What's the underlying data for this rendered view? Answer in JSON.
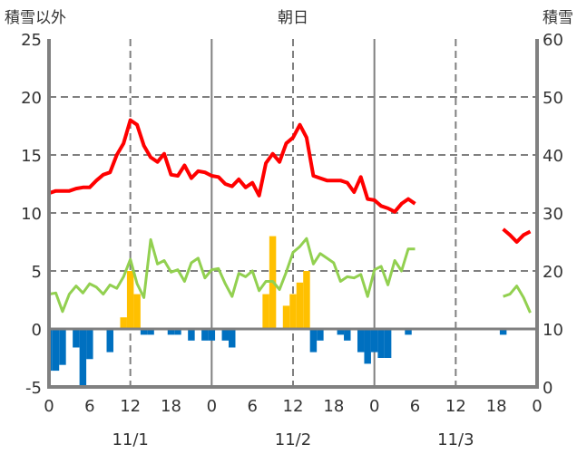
{
  "chart_data": {
    "type": "line+bar",
    "title": "朝日",
    "left_axis_title": "積雪以外",
    "right_axis_title": "積雪",
    "ylim_left": [
      -5,
      25
    ],
    "ylim_right": [
      0,
      60
    ],
    "yticks_left": [
      "-5",
      "0",
      "5",
      "10",
      "15",
      "20",
      "25"
    ],
    "yticks_right": [
      "0",
      "10",
      "20",
      "30",
      "40",
      "50",
      "60"
    ],
    "xlim_hours": [
      0,
      72
    ],
    "xtick_labels": [
      "0",
      "6",
      "12",
      "18",
      "0",
      "6",
      "12",
      "18",
      "0",
      "6",
      "12",
      "18",
      "0"
    ],
    "date_labels": [
      {
        "label": "11/1",
        "hour": 12
      },
      {
        "label": "11/2",
        "hour": 36
      },
      {
        "label": "11/3",
        "hour": 60
      }
    ],
    "colors": {
      "red": "#ff0000",
      "green": "#92d050",
      "orange": "#ffc000",
      "blue": "#0070c0",
      "grid": "#808080"
    },
    "series": [
      {
        "name": "red-line",
        "color": "#ff0000",
        "points": [
          [
            0,
            11.7
          ],
          [
            1,
            11.9
          ],
          [
            2,
            11.9
          ],
          [
            3,
            11.9
          ],
          [
            4,
            12.1
          ],
          [
            5,
            12.2
          ],
          [
            6,
            12.2
          ],
          [
            7,
            12.8
          ],
          [
            8,
            13.3
          ],
          [
            9,
            13.5
          ],
          [
            10,
            15
          ],
          [
            11,
            16
          ],
          [
            12,
            18
          ],
          [
            13,
            17.6
          ],
          [
            14,
            15.8
          ],
          [
            15,
            14.8
          ],
          [
            16,
            14.4
          ],
          [
            17,
            15.1
          ],
          [
            18,
            13.3
          ],
          [
            19,
            13.2
          ],
          [
            20,
            14.1
          ],
          [
            21,
            13
          ],
          [
            22,
            13.6
          ],
          [
            23,
            13.5
          ],
          [
            24,
            13.2
          ],
          [
            25,
            13.1
          ],
          [
            26,
            12.5
          ],
          [
            27,
            12.3
          ],
          [
            28,
            12.9
          ],
          [
            29,
            12.2
          ],
          [
            30,
            12.6
          ],
          [
            31,
            11.5
          ],
          [
            32,
            14.3
          ],
          [
            33,
            15.1
          ],
          [
            34,
            14.4
          ],
          [
            35,
            16
          ],
          [
            36,
            16.5
          ],
          [
            37,
            17.6
          ],
          [
            38,
            16.5
          ],
          [
            39,
            13.2
          ],
          [
            40,
            13
          ],
          [
            41,
            12.8
          ],
          [
            42,
            12.8
          ],
          [
            43,
            12.8
          ],
          [
            44,
            12.6
          ],
          [
            45,
            11.8
          ],
          [
            46,
            13.1
          ],
          [
            47,
            11.2
          ],
          [
            48,
            11.1
          ],
          [
            49,
            10.6
          ],
          [
            50,
            10.4
          ],
          [
            51,
            10.1
          ],
          [
            52,
            10.8
          ],
          [
            53,
            11.2
          ],
          [
            54,
            10.8
          ],
          null,
          [
            67,
            8.6
          ],
          [
            68,
            8.1
          ],
          [
            69,
            7.5
          ],
          [
            70,
            8.1
          ],
          [
            71,
            8.4
          ]
        ]
      },
      {
        "name": "green-line",
        "color": "#92d050",
        "points": [
          [
            0,
            3
          ],
          [
            1,
            3.1
          ],
          [
            2,
            1.5
          ],
          [
            3,
            3
          ],
          [
            4,
            3.7
          ],
          [
            5,
            3.1
          ],
          [
            6,
            3.9
          ],
          [
            7,
            3.6
          ],
          [
            8,
            3
          ],
          [
            9,
            3.8
          ],
          [
            10,
            3.5
          ],
          [
            11,
            4.5
          ],
          [
            12,
            6
          ],
          [
            13,
            3.9
          ],
          [
            14,
            2.7
          ],
          [
            15,
            7.7
          ],
          [
            16,
            5.6
          ],
          [
            17,
            5.9
          ],
          [
            18,
            4.9
          ],
          [
            19,
            5.1
          ],
          [
            20,
            4.1
          ],
          [
            21,
            5.7
          ],
          [
            22,
            6.1
          ],
          [
            23,
            4.4
          ],
          [
            24,
            5.1
          ],
          [
            25,
            5.2
          ],
          [
            26,
            3.9
          ],
          [
            27,
            2.8
          ],
          [
            28,
            4.8
          ],
          [
            29,
            4.5
          ],
          [
            30,
            5
          ],
          [
            31,
            3.3
          ],
          [
            32,
            4.1
          ],
          [
            33,
            4.1
          ],
          [
            34,
            3.4
          ],
          [
            35,
            4.9
          ],
          [
            36,
            6.6
          ],
          [
            37,
            7.1
          ],
          [
            38,
            7.8
          ],
          [
            39,
            5.6
          ],
          [
            40,
            6.5
          ],
          [
            41,
            6.1
          ],
          [
            42,
            5.7
          ],
          [
            43,
            4.1
          ],
          [
            44,
            4.5
          ],
          [
            45,
            4.4
          ],
          [
            46,
            4.7
          ],
          [
            47,
            2.8
          ],
          [
            48,
            5.1
          ],
          [
            49,
            5.4
          ],
          [
            50,
            3.8
          ],
          [
            51,
            5.9
          ],
          [
            52,
            5
          ],
          [
            53,
            6.9
          ],
          [
            54,
            6.9
          ],
          null,
          [
            67,
            2.8
          ],
          [
            68,
            3
          ],
          [
            69,
            3.7
          ],
          [
            70,
            2.7
          ],
          [
            71,
            1.4
          ]
        ]
      },
      {
        "name": "orange-bars",
        "color": "#ffc000",
        "bars": [
          [
            11,
            1
          ],
          [
            12,
            5
          ],
          [
            13,
            3
          ],
          [
            32,
            3
          ],
          [
            33,
            8
          ],
          [
            35,
            2
          ],
          [
            36,
            3
          ],
          [
            37,
            4
          ],
          [
            38,
            5
          ]
        ]
      },
      {
        "name": "blue-bars",
        "color": "#0070c0",
        "bars": [
          [
            0,
            -3.6
          ],
          [
            1,
            -3.6
          ],
          [
            2,
            -3.1
          ],
          [
            4,
            -1.6
          ],
          [
            5,
            -5
          ],
          [
            6,
            -2.6
          ],
          [
            9,
            -2
          ],
          [
            14,
            -0.5
          ],
          [
            15,
            -0.5
          ],
          [
            18,
            -0.5
          ],
          [
            19,
            -0.5
          ],
          [
            21,
            -1
          ],
          [
            23,
            -1
          ],
          [
            24,
            -1
          ],
          [
            26,
            -1
          ],
          [
            27,
            -1.6
          ],
          [
            39,
            -2
          ],
          [
            40,
            -1
          ],
          [
            43,
            -0.5
          ],
          [
            44,
            -1
          ],
          [
            46,
            -2
          ],
          [
            47,
            -3
          ],
          [
            48,
            -2
          ],
          [
            49,
            -2.5
          ],
          [
            50,
            -2.5
          ],
          [
            53,
            -0.5
          ],
          [
            67,
            -0.5
          ]
        ]
      }
    ]
  }
}
